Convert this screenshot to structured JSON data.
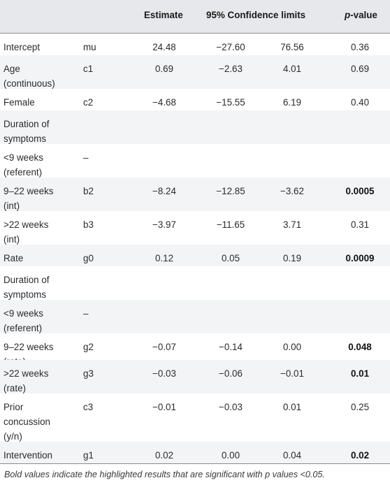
{
  "header": {
    "estimate": "Estimate",
    "ci": "95% Confidence limits",
    "p_prefix": "p",
    "p_suffix": "-value"
  },
  "rows": [
    {
      "label": [
        "Intercept"
      ],
      "code": "mu",
      "est": "24.48",
      "lo": "−27.60",
      "hi": "76.56",
      "p": "0.36",
      "bold": false
    },
    {
      "label": [
        "Age",
        "(continuous)"
      ],
      "code": "c1",
      "est": "0.69",
      "lo": "−2.63",
      "hi": "4.01",
      "p": "0.69",
      "bold": false
    },
    {
      "label": [
        "Female"
      ],
      "code": "c2",
      "est": "−4.68",
      "lo": "−15.55",
      "hi": "6.19",
      "p": "0.40",
      "bold": false
    },
    {
      "label": [
        "Duration of",
        "symptoms"
      ],
      "code": "",
      "est": "",
      "lo": "",
      "hi": "",
      "p": "",
      "bold": false
    },
    {
      "label": [
        "<9 weeks",
        "(referent)"
      ],
      "code": "–",
      "est": "",
      "lo": "",
      "hi": "",
      "p": "",
      "bold": false
    },
    {
      "label": [
        "9–22 weeks",
        "(int)"
      ],
      "code": "b2",
      "est": "−8.24",
      "lo": "−12.85",
      "hi": "−3.62",
      "p": "0.0005",
      "bold": true
    },
    {
      "label": [
        ">22 weeks",
        "(int)"
      ],
      "code": "b3",
      "est": "−3.97",
      "lo": "−11.65",
      "hi": "3.71",
      "p": "0.31",
      "bold": false
    },
    {
      "label": [
        "Rate"
      ],
      "code": "g0",
      "est": "0.12",
      "lo": "0.05",
      "hi": "0.19",
      "p": "0.0009",
      "bold": true
    },
    {
      "label": [
        "Duration of",
        "symptoms"
      ],
      "code": "",
      "est": "",
      "lo": "",
      "hi": "",
      "p": "",
      "bold": false
    },
    {
      "label": [
        "<9 weeks",
        "(referent)"
      ],
      "code": "–",
      "est": "",
      "lo": "",
      "hi": "",
      "p": "",
      "bold": false
    },
    {
      "label": [
        "9–22 weeks",
        "(rate)"
      ],
      "code": "g2",
      "est": "−0.07",
      "lo": "−0.14",
      "hi": "0.00",
      "p": "0.048",
      "bold": true
    },
    {
      "label": [
        ">22 weeks",
        "(rate)"
      ],
      "code": "g3",
      "est": "−0.03",
      "lo": "−0.06",
      "hi": "−0.01",
      "p": "0.01",
      "bold": true
    },
    {
      "label": [
        "Prior",
        "concussion",
        "(y/n)"
      ],
      "code": "c3",
      "est": "−0.01",
      "lo": "−0.03",
      "hi": "0.01",
      "p": "0.25",
      "bold": false
    },
    {
      "label": [
        "Intervention"
      ],
      "code": "g1",
      "est": "0.02",
      "lo": "0.00",
      "hi": "0.04",
      "p": "0.02",
      "bold": true
    }
  ],
  "footnote": "Bold values indicate the highlighted results that are significant with p values <0.05."
}
